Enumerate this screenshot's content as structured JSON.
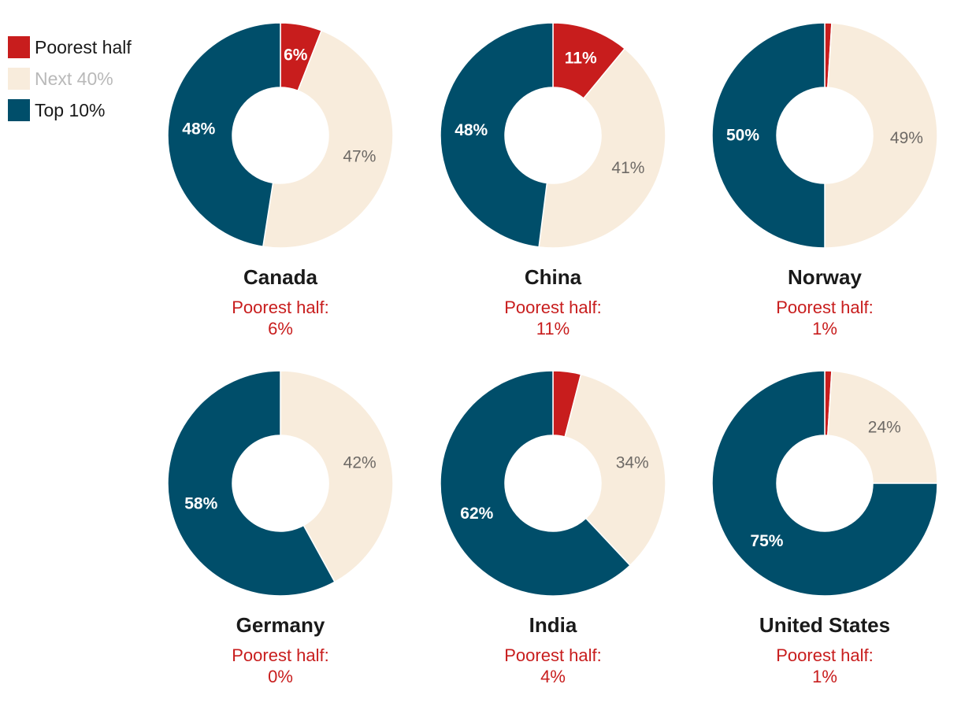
{
  "legend": {
    "items": [
      {
        "label": "Poorest half",
        "color": "#c81d1d",
        "text_color": "#1a1a1a"
      },
      {
        "label": "Next 40%",
        "color": "#f8ecdc",
        "text_color": "#b9b9b9"
      },
      {
        "label": "Top 10%",
        "color": "#004e6a",
        "text_color": "#1a1a1a"
      }
    ]
  },
  "colors": {
    "poorest_half": "#c81d1d",
    "next_40": "#f8ecdc",
    "top_10": "#004e6a",
    "subtitle": "#c81d1d"
  },
  "chart_data": {
    "type": "donut",
    "series_names": [
      "Poorest half",
      "Next 40%",
      "Top 10%"
    ],
    "charts": [
      {
        "country": "Canada",
        "subtitle_line1": "Poorest half:",
        "subtitle_line2": "6%",
        "values": [
          6,
          47,
          48
        ],
        "labels": [
          "6%",
          "47%",
          "48%"
        ]
      },
      {
        "country": "China",
        "subtitle_line1": "Poorest half:",
        "subtitle_line2": "11%",
        "values": [
          11,
          41,
          48
        ],
        "labels": [
          "11%",
          "41%",
          "48%"
        ]
      },
      {
        "country": "Norway",
        "subtitle_line1": "Poorest half:",
        "subtitle_line2": "1%",
        "values": [
          1,
          49,
          50
        ],
        "labels": [
          "",
          "49%",
          "50%"
        ]
      },
      {
        "country": "Germany",
        "subtitle_line1": "Poorest half:",
        "subtitle_line2": "0%",
        "values": [
          0,
          42,
          58
        ],
        "labels": [
          "",
          "42%",
          "58%"
        ]
      },
      {
        "country": "India",
        "subtitle_line1": "Poorest half:",
        "subtitle_line2": "4%",
        "values": [
          4,
          34,
          62
        ],
        "labels": [
          "",
          "34%",
          "62%"
        ]
      },
      {
        "country": "United States",
        "subtitle_line1": "Poorest half:",
        "subtitle_line2": "1%",
        "values": [
          1,
          24,
          75
        ],
        "labels": [
          "",
          "24%",
          "75%"
        ]
      }
    ]
  }
}
